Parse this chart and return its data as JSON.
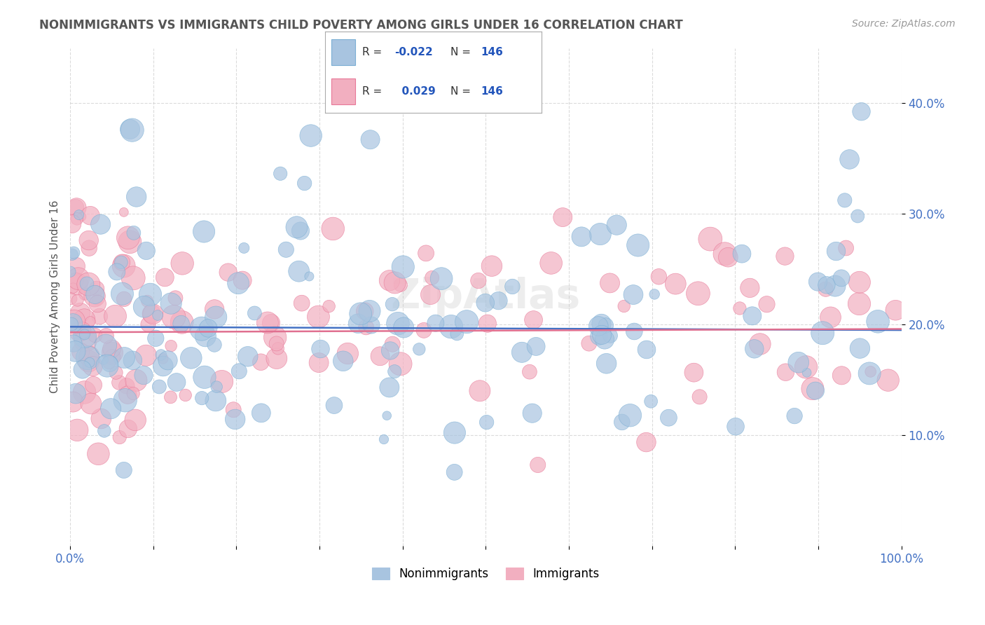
{
  "title": "NONIMMIGRANTS VS IMMIGRANTS CHILD POVERTY AMONG GIRLS UNDER 16 CORRELATION CHART",
  "source": "Source: ZipAtlas.com",
  "ylabel": "Child Poverty Among Girls Under 16",
  "xlim": [
    0,
    100
  ],
  "ylim": [
    0,
    45
  ],
  "xticks": [
    0,
    10,
    20,
    30,
    40,
    50,
    60,
    70,
    80,
    90,
    100
  ],
  "yticks": [
    10,
    20,
    30,
    40
  ],
  "xtick_labels": [
    "0.0%",
    "",
    "",
    "",
    "",
    "",
    "",
    "",
    "",
    "",
    "100.0%"
  ],
  "ytick_labels": [
    "10.0%",
    "20.0%",
    "30.0%",
    "40.0%"
  ],
  "nonimmigrant_color": "#a8c4e0",
  "nonimmigrant_edge": "#7bafd4",
  "immigrant_color": "#f2afc0",
  "immigrant_edge": "#e87898",
  "nonimmigrant_line_color": "#4472c4",
  "immigrant_line_color": "#e07090",
  "R_nonimmigrant": -0.022,
  "R_immigrant": 0.029,
  "N_nonimmigrant": 146,
  "N_immigrant": 146,
  "background_color": "#ffffff",
  "grid_color": "#cccccc",
  "legend_nonimmigrant": "Nonimmigrants",
  "legend_immigrant": "Immigrants",
  "watermark": "ZipAtlas",
  "title_color": "#555555",
  "source_color": "#999999",
  "axis_label_color": "#4472c4",
  "tick_color": "#4472c4",
  "seed": 12
}
